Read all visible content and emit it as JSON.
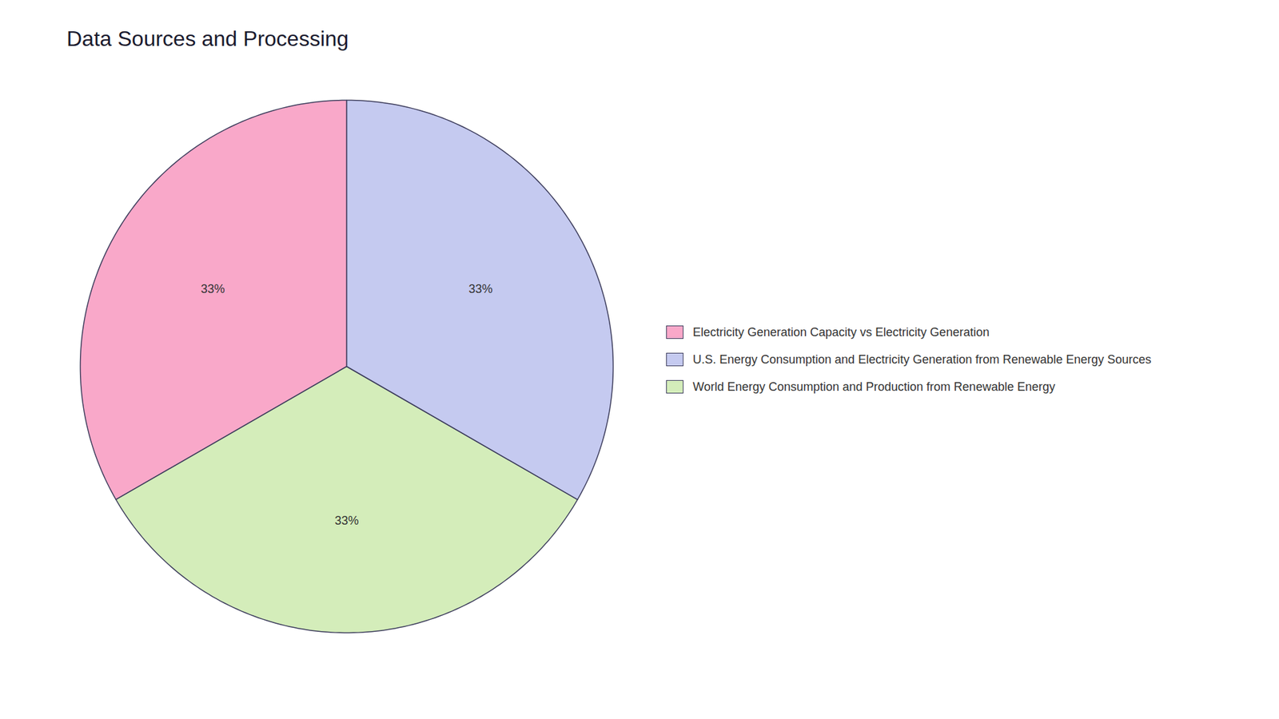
{
  "chart_data": {
    "type": "pie",
    "title": "Data Sources and Processing",
    "categories": [
      "Electricity Generation Capacity vs Electricity Generation",
      "U.S. Energy Consumption and Electricity Generation from Renewable Energy Sources",
      "World Energy Consumption and Production from Renewable Energy"
    ],
    "values": [
      33.33,
      33.34,
      33.33
    ],
    "value_labels": [
      "33%",
      "33%",
      "33%"
    ],
    "colors": [
      "#f9a8c9",
      "#d4edba",
      "#c5caf0"
    ],
    "legend_colors": [
      "#f9a8c9",
      "#c5caf0",
      "#d4edba"
    ],
    "data_labels": true,
    "legend": "right"
  }
}
